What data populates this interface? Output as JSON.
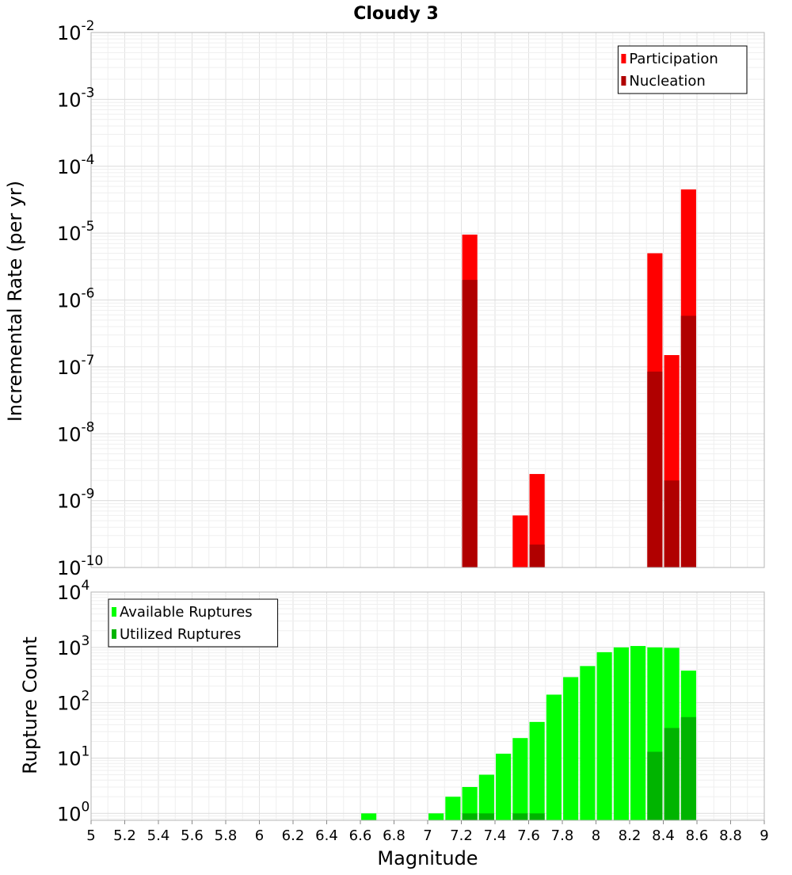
{
  "chart_data": [
    {
      "type": "bar",
      "title": "Cloudy 3",
      "xlabel": "",
      "ylabel": "Incremental Rate (per yr)",
      "yscale": "log",
      "ylim": [
        1e-10,
        0.01
      ],
      "xlim": [
        5,
        9
      ],
      "y_tick_labels": [
        {
          "base": "10",
          "exp": "-10"
        },
        {
          "base": "10",
          "exp": "-9"
        },
        {
          "base": "10",
          "exp": "-8"
        },
        {
          "base": "10",
          "exp": "-7"
        },
        {
          "base": "10",
          "exp": "-6"
        },
        {
          "base": "10",
          "exp": "-5"
        },
        {
          "base": "10",
          "exp": "-4"
        },
        {
          "base": "10",
          "exp": "-3"
        },
        {
          "base": "10",
          "exp": "-2"
        }
      ],
      "grid": true,
      "legend_position": "top-right",
      "series": [
        {
          "name": "Participation",
          "color": "#FF0000",
          "points": [
            {
              "x": 7.25,
              "y": 9.5e-06
            },
            {
              "x": 7.55,
              "y": 6e-10
            },
            {
              "x": 7.65,
              "y": 2.5e-09
            },
            {
              "x": 8.35,
              "y": 5e-06
            },
            {
              "x": 8.45,
              "y": 1.5e-07
            },
            {
              "x": 8.55,
              "y": 4.5e-05
            }
          ]
        },
        {
          "name": "Nucleation",
          "color": "#B00000",
          "points": [
            {
              "x": 7.25,
              "y": 2e-06
            },
            {
              "x": 7.65,
              "y": 2.2e-10
            },
            {
              "x": 8.35,
              "y": 8.5e-08
            },
            {
              "x": 8.45,
              "y": 2e-09
            },
            {
              "x": 8.55,
              "y": 5.8e-07
            }
          ]
        }
      ]
    },
    {
      "type": "bar",
      "title": "",
      "xlabel": "Magnitude",
      "ylabel": "Rupture Count",
      "yscale": "log",
      "ylim": [
        0.75,
        10000
      ],
      "xlim": [
        5,
        9
      ],
      "x_ticks": [
        "5",
        "5.2",
        "5.4",
        "5.6",
        "5.8",
        "6",
        "6.2",
        "6.4",
        "6.6",
        "6.8",
        "7",
        "7.2",
        "7.4",
        "7.6",
        "7.8",
        "8",
        "8.2",
        "8.4",
        "8.6",
        "8.8",
        "9"
      ],
      "y_tick_labels": [
        {
          "base": "10",
          "exp": "0"
        },
        {
          "base": "10",
          "exp": "1"
        },
        {
          "base": "10",
          "exp": "2"
        },
        {
          "base": "10",
          "exp": "3"
        },
        {
          "base": "10",
          "exp": "4"
        }
      ],
      "grid": true,
      "legend_position": "top-left",
      "series": [
        {
          "name": "Available Ruptures",
          "color": "#00FF00",
          "points": [
            {
              "x": 6.65,
              "y": 1
            },
            {
              "x": 7.05,
              "y": 1
            },
            {
              "x": 7.15,
              "y": 2
            },
            {
              "x": 7.25,
              "y": 3
            },
            {
              "x": 7.35,
              "y": 5
            },
            {
              "x": 7.45,
              "y": 12
            },
            {
              "x": 7.55,
              "y": 23
            },
            {
              "x": 7.65,
              "y": 45
            },
            {
              "x": 7.75,
              "y": 140
            },
            {
              "x": 7.85,
              "y": 290
            },
            {
              "x": 7.95,
              "y": 460
            },
            {
              "x": 8.05,
              "y": 820
            },
            {
              "x": 8.15,
              "y": 1000
            },
            {
              "x": 8.25,
              "y": 1060
            },
            {
              "x": 8.35,
              "y": 1000
            },
            {
              "x": 8.45,
              "y": 980
            },
            {
              "x": 8.55,
              "y": 380
            }
          ]
        },
        {
          "name": "Utilized Ruptures",
          "color": "#00B400",
          "points": [
            {
              "x": 7.25,
              "y": 1
            },
            {
              "x": 7.35,
              "y": 1
            },
            {
              "x": 7.55,
              "y": 1
            },
            {
              "x": 7.65,
              "y": 1
            },
            {
              "x": 8.35,
              "y": 13
            },
            {
              "x": 8.45,
              "y": 35
            },
            {
              "x": 8.55,
              "y": 55
            }
          ]
        }
      ]
    }
  ]
}
